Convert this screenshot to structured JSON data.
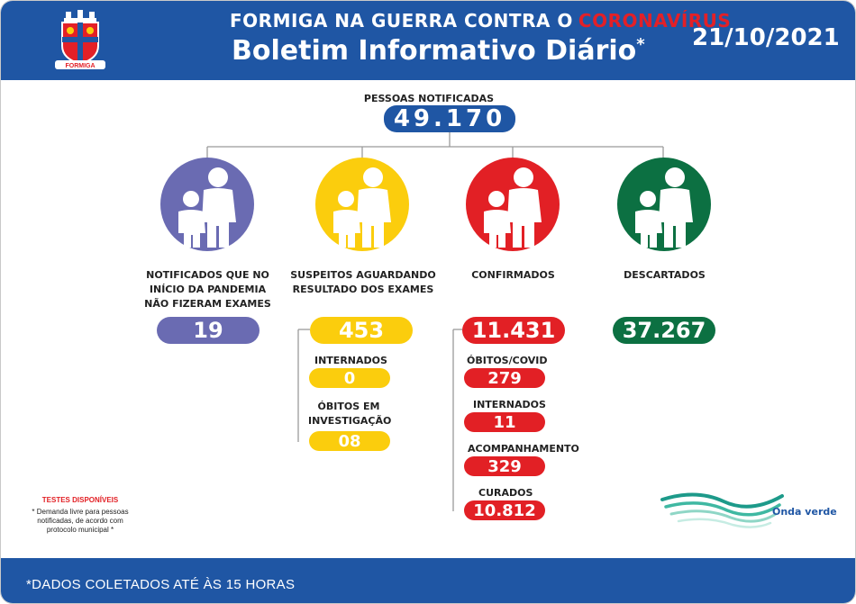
{
  "header": {
    "headline_prefix": "FORMIGA NA GUERRA CONTRA O",
    "headline_highlight": "CORONAVÍRUS",
    "title": "Boletim Informativo Diário",
    "title_mark": "*",
    "date": "21/10/2021",
    "crest_text": "FORMIGA",
    "colors": {
      "bar": "#1f56a4",
      "highlight": "#e32027"
    }
  },
  "notificadas": {
    "label": "PESSOAS NOTIFICADAS",
    "value": "49.170"
  },
  "categories": [
    {
      "key": "sem_exame",
      "label_lines": [
        "NOTIFICADOS QUE NO",
        "INÍCIO DA PANDEMIA",
        "NÃO FIZERAM EXAMES"
      ],
      "value": "19",
      "color": "#6a6bb2",
      "icon": "family-icon"
    },
    {
      "key": "suspeitos",
      "label_lines": [
        "SUSPEITOS AGUARDANDO",
        "RESULTADO DOS EXAMES"
      ],
      "value": "453",
      "color": "#fbcd0d",
      "icon": "family-icon"
    },
    {
      "key": "confirmados",
      "label_lines": [
        "CONFIRMADOS"
      ],
      "value": "11.431",
      "color": "#e22025",
      "icon": "family-icon"
    },
    {
      "key": "descartados",
      "label_lines": [
        "DESCARTADOS"
      ],
      "value": "37.267",
      "color": "#0c7042",
      "icon": "family-icon"
    }
  ],
  "suspeitos_sub": [
    {
      "label_lines": [
        "INTERNADOS"
      ],
      "value": "0"
    },
    {
      "label_lines": [
        "ÓBITOS EM",
        "INVESTIGAÇÃO"
      ],
      "value": "08"
    }
  ],
  "confirmados_sub": [
    {
      "label": "ÓBITOS/COVID",
      "value": "279"
    },
    {
      "label": "INTERNADOS",
      "value": "11"
    },
    {
      "label": "ACOMPANHAMENTO",
      "value": "329"
    },
    {
      "label": "CURADOS",
      "value": "10.812"
    }
  ],
  "tests": {
    "title": "TESTES DISPONÍVEIS",
    "note_lines": [
      "* Demanda livre para pessoas",
      "notificadas, de acordo com",
      "protocolo municipal *"
    ]
  },
  "brand": {
    "name": "Onda verde",
    "icon": "wave-logo-icon"
  },
  "footer": {
    "text": "*DADOS COLETADOS ATÉ ÀS 15 HORAS"
  }
}
